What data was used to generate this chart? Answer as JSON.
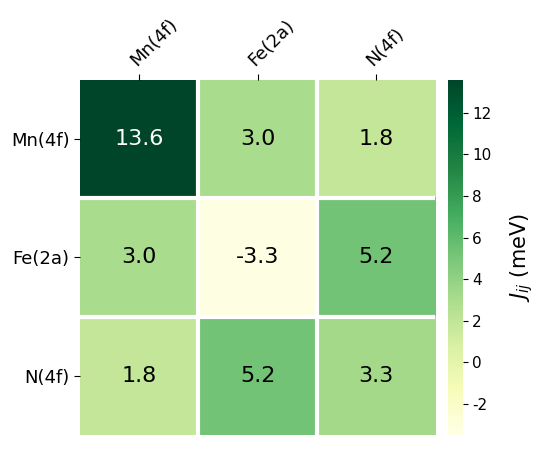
{
  "labels": [
    "Mn(4f)",
    "Fe(2a)",
    "N(4f)"
  ],
  "matrix": [
    [
      13.6,
      3.0,
      1.8
    ],
    [
      3.0,
      -3.3,
      5.2
    ],
    [
      1.8,
      5.2,
      3.3
    ]
  ],
  "vmin": -3.5,
  "vmax": 13.6,
  "cmap": "YlGn",
  "colorbar_label": "$J_{ij}$ (meV)",
  "colorbar_ticks": [
    -2,
    0,
    2,
    4,
    6,
    8,
    10,
    12
  ],
  "text_threshold_white": 6.5,
  "linecolor": "white",
  "linewidth": 3
}
